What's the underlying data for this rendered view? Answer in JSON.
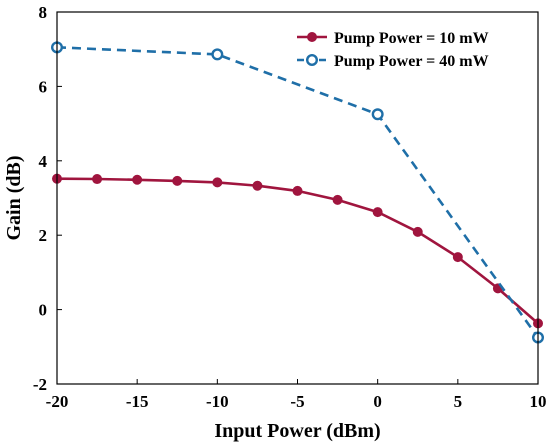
{
  "chart_data": {
    "type": "line",
    "title": "",
    "xlabel": "Input Power (dBm)",
    "ylabel": "Gain (dB)",
    "xlim": [
      -20,
      10
    ],
    "ylim": [
      -2,
      8
    ],
    "xticks": [
      "-20",
      "-15",
      "-10",
      "-5",
      "0",
      "5",
      "10"
    ],
    "yticks": [
      "-2",
      "0",
      "2",
      "4",
      "6",
      "8"
    ],
    "grid": false,
    "legend_position": "top-right",
    "series": [
      {
        "name": "Pump Power = 10 mW",
        "color": "#a0153e",
        "line_style": "solid",
        "marker": "filled-circle",
        "x": [
          -20,
          -17.5,
          -15,
          -12.5,
          -10,
          -7.5,
          -5,
          -2.5,
          0,
          2.5,
          5,
          7.5,
          10
        ],
        "y": [
          3.52,
          3.51,
          3.49,
          3.46,
          3.42,
          3.33,
          3.19,
          2.95,
          2.62,
          2.09,
          1.41,
          0.57,
          -0.37
        ]
      },
      {
        "name": "Pump Power = 40 mW",
        "color": "#1f6fa8",
        "line_style": "dashed",
        "marker": "open-circle",
        "x": [
          -20,
          -10,
          0,
          10
        ],
        "y": [
          7.05,
          6.86,
          5.25,
          -0.75
        ]
      }
    ]
  }
}
